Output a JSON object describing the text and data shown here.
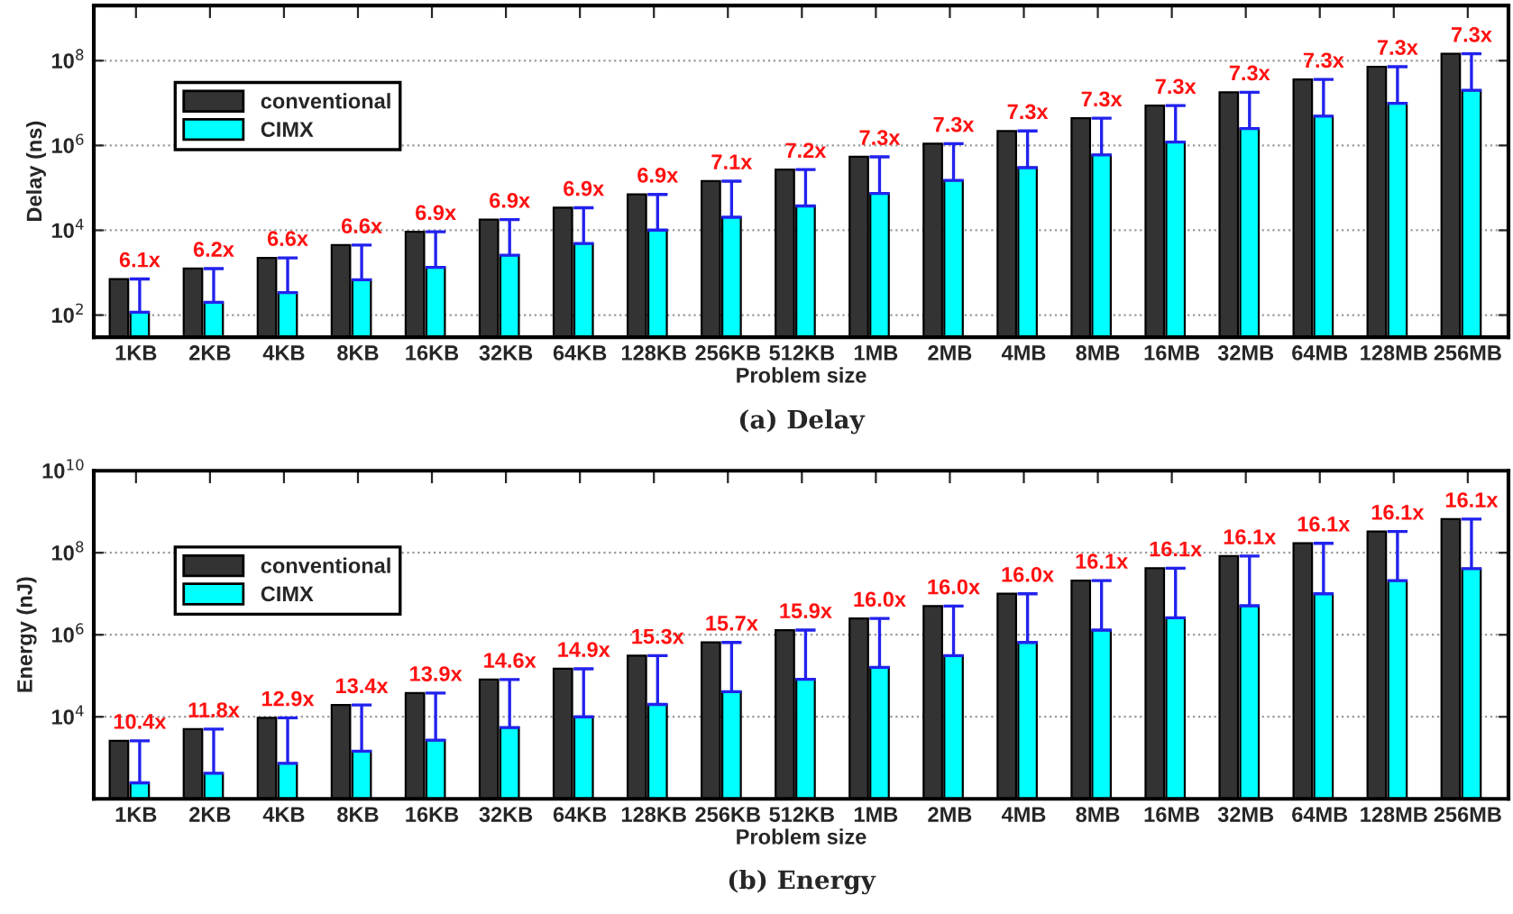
{
  "chart_data": [
    {
      "type": "bar",
      "title": "(a) Delay",
      "xlabel": "Problem size",
      "ylabel": "Delay (ns)",
      "categories": [
        "1KB",
        "2KB",
        "4KB",
        "8KB",
        "16KB",
        "32KB",
        "64KB",
        "128KB",
        "256KB",
        "512KB",
        "1MB",
        "2MB",
        "4MB",
        "8MB",
        "16MB",
        "32MB",
        "64MB",
        "128MB",
        "256MB"
      ],
      "series": [
        {
          "name": "conventional",
          "color": "#333333",
          "values": [
            710,
            1250,
            2240,
            4470,
            9200,
            17800,
            34000,
            70000,
            144000,
            270000,
            540000,
            1100000,
            2200000,
            4400000,
            8700000,
            18000000,
            36000000,
            72000000,
            145000000
          ]
        },
        {
          "name": "CIMX",
          "color": "#00ffff",
          "values": [
            117,
            200,
            340,
            680,
            1330,
            2580,
            4900,
            10100,
            20300,
            37500,
            74000,
            150000,
            300000,
            600000,
            1200000,
            2500000,
            4900000,
            9900000,
            20000000
          ],
          "errors": [
            [
              117,
              710
            ],
            [
              200,
              1250
            ],
            [
              340,
              2240
            ],
            [
              680,
              4470
            ],
            [
              1330,
              9200
            ],
            [
              2580,
              17800
            ],
            [
              4900,
              34000
            ],
            [
              10100,
              70000
            ],
            [
              20300,
              144000
            ],
            [
              37500,
              270000
            ],
            [
              74000,
              540000
            ],
            [
              150000,
              1100000
            ],
            [
              300000,
              2200000
            ],
            [
              600000,
              4400000
            ],
            [
              1200000,
              8700000
            ],
            [
              2500000,
              18000000
            ],
            [
              4900000,
              36000000
            ],
            [
              9900000,
              72000000
            ],
            [
              20000000,
              145000000
            ]
          ]
        }
      ],
      "annotations": [
        {
          "text": "6.1x",
          "x": "1KB",
          "y": 710
        },
        {
          "text": "6.2x",
          "x": "2KB",
          "y": 1250
        },
        {
          "text": "6.6x",
          "x": "4KB",
          "y": 2240
        },
        {
          "text": "6.6x",
          "x": "8KB",
          "y": 4470
        },
        {
          "text": "6.9x",
          "x": "16KB",
          "y": 9200
        },
        {
          "text": "6.9x",
          "x": "32KB",
          "y": 17800
        },
        {
          "text": "6.9x",
          "x": "64KB",
          "y": 34000
        },
        {
          "text": "6.9x",
          "x": "128KB",
          "y": 70000
        },
        {
          "text": "7.1x",
          "x": "256KB",
          "y": 144000
        },
        {
          "text": "7.2x",
          "x": "512KB",
          "y": 270000
        },
        {
          "text": "7.3x",
          "x": "1MB",
          "y": 540000
        },
        {
          "text": "7.3x",
          "x": "2MB",
          "y": 1100000
        },
        {
          "text": "7.3x",
          "x": "4MB",
          "y": 2200000
        },
        {
          "text": "7.3x",
          "x": "8MB",
          "y": 4400000
        },
        {
          "text": "7.3x",
          "x": "16MB",
          "y": 8700000
        },
        {
          "text": "7.3x",
          "x": "32MB",
          "y": 18000000
        },
        {
          "text": "7.3x",
          "x": "64MB",
          "y": 36000000
        },
        {
          "text": "7.3x",
          "x": "128MB",
          "y": 72000000
        },
        {
          "text": "7.3x",
          "x": "256MB",
          "y": 145000000
        }
      ],
      "log": "y",
      "ylim": [
        30,
        2000000000
      ],
      "yticks": [
        {
          "value": 100,
          "label": "10$^{2}$"
        },
        {
          "value": 10000,
          "label": "10$^{4}$"
        },
        {
          "value": 1000000,
          "label": "10$^{6}$"
        },
        {
          "value": 100000000,
          "label": "10$^{8}$"
        }
      ],
      "grid": "y",
      "legend": "top left"
    },
    {
      "type": "bar",
      "title": "(b) Energy",
      "xlabel": "Problem size",
      "ylabel": "Energy (nJ)",
      "categories": [
        "1KB",
        "2KB",
        "4KB",
        "8KB",
        "16KB",
        "32KB",
        "64KB",
        "128KB",
        "256KB",
        "512KB",
        "1MB",
        "2MB",
        "4MB",
        "8MB",
        "16MB",
        "32MB",
        "64MB",
        "128MB",
        "256MB"
      ],
      "series": [
        {
          "name": "conventional",
          "color": "#333333",
          "values": [
            2600,
            5000,
            9400,
            19400,
            38000,
            81000,
            148000,
            310000,
            650000,
            1300000,
            2500000,
            5000000,
            10000000,
            21000000,
            42000000,
            83000000,
            170000000,
            330000000,
            660000000
          ]
        },
        {
          "name": "CIMX",
          "color": "#00ffff",
          "values": [
            245,
            420,
            730,
            1450,
            2700,
            5500,
            10000,
            20000,
            41000,
            82000,
            160000,
            310000,
            650000,
            1300000,
            2600000,
            5100000,
            10000000,
            21000000,
            41000000
          ],
          "errors": [
            [
              245,
              2600
            ],
            [
              420,
              5000
            ],
            [
              730,
              9400
            ],
            [
              1450,
              19400
            ],
            [
              2700,
              38000
            ],
            [
              5500,
              81000
            ],
            [
              10000,
              148000
            ],
            [
              20000,
              310000
            ],
            [
              41000,
              650000
            ],
            [
              82000,
              1300000
            ],
            [
              160000,
              2500000
            ],
            [
              310000,
              5000000
            ],
            [
              650000,
              10000000
            ],
            [
              1300000,
              21000000
            ],
            [
              2600000,
              42000000
            ],
            [
              5100000,
              83000000
            ],
            [
              10000000,
              170000000
            ],
            [
              21000000,
              330000000
            ],
            [
              41000000,
              660000000
            ]
          ]
        }
      ],
      "annotations": [
        {
          "text": "10.4x",
          "x": "1KB",
          "y": 2600
        },
        {
          "text": "11.8x",
          "x": "2KB",
          "y": 5000
        },
        {
          "text": "12.9x",
          "x": "4KB",
          "y": 9400
        },
        {
          "text": "13.4x",
          "x": "8KB",
          "y": 19400
        },
        {
          "text": "13.9x",
          "x": "16KB",
          "y": 38000
        },
        {
          "text": "14.6x",
          "x": "32KB",
          "y": 81000
        },
        {
          "text": "14.9x",
          "x": "64KB",
          "y": 148000
        },
        {
          "text": "15.3x",
          "x": "128KB",
          "y": 310000
        },
        {
          "text": "15.7x",
          "x": "256KB",
          "y": 650000
        },
        {
          "text": "15.9x",
          "x": "512KB",
          "y": 1300000
        },
        {
          "text": "16.0x",
          "x": "1MB",
          "y": 2500000
        },
        {
          "text": "16.0x",
          "x": "2MB",
          "y": 5000000
        },
        {
          "text": "16.0x",
          "x": "4MB",
          "y": 10000000
        },
        {
          "text": "16.1x",
          "x": "8MB",
          "y": 21000000
        },
        {
          "text": "16.1x",
          "x": "16MB",
          "y": 42000000
        },
        {
          "text": "16.1x",
          "x": "32MB",
          "y": 83000000
        },
        {
          "text": "16.1x",
          "x": "64MB",
          "y": 170000000
        },
        {
          "text": "16.1x",
          "x": "128MB",
          "y": 330000000
        },
        {
          "text": "16.1x",
          "x": "256MB",
          "y": 660000000
        }
      ],
      "log": "y",
      "ylim": [
        100,
        10000000000
      ],
      "yticks": [
        {
          "value": 10000,
          "label": "10$^{4}$"
        },
        {
          "value": 1000000,
          "label": "10$^{6}$"
        },
        {
          "value": 100000000,
          "label": "10$^{8}$"
        },
        {
          "value": 10000000000,
          "label": "10$^{10}$"
        }
      ],
      "grid": "y",
      "legend": "top left"
    }
  ]
}
